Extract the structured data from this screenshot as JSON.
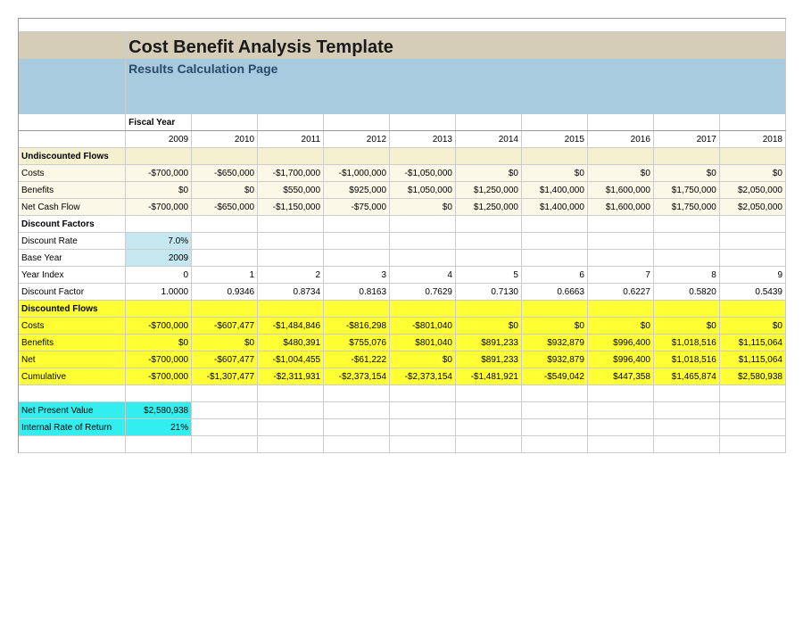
{
  "title": "Cost Benefit Analysis Template",
  "subtitle": "Results Calculation Page",
  "fiscal_label": "Fiscal Year",
  "years": [
    "2009",
    "2010",
    "2011",
    "2012",
    "2013",
    "2014",
    "2015",
    "2016",
    "2017",
    "2018"
  ],
  "sections": {
    "undiscounted": {
      "header": "Undiscounted Flows",
      "rows": [
        {
          "label": "Costs",
          "values": [
            "-$700,000",
            "-$650,000",
            "-$1,700,000",
            "-$1,000,000",
            "-$1,050,000",
            "$0",
            "$0",
            "$0",
            "$0",
            "$0"
          ]
        },
        {
          "label": "Benefits",
          "values": [
            "$0",
            "$0",
            "$550,000",
            "$925,000",
            "$1,050,000",
            "$1,250,000",
            "$1,400,000",
            "$1,600,000",
            "$1,750,000",
            "$2,050,000"
          ]
        },
        {
          "label": "Net Cash Flow",
          "values": [
            "-$700,000",
            "-$650,000",
            "-$1,150,000",
            "-$75,000",
            "$0",
            "$1,250,000",
            "$1,400,000",
            "$1,600,000",
            "$1,750,000",
            "$2,050,000"
          ]
        }
      ]
    },
    "discount_factors": {
      "header": "Discount Factors",
      "rows": [
        {
          "label": "Discount Rate",
          "values": [
            "7.0%",
            "",
            "",
            "",
            "",
            "",
            "",
            "",
            "",
            ""
          ],
          "first_highlight": true
        },
        {
          "label": "Base Year",
          "values": [
            "2009",
            "",
            "",
            "",
            "",
            "",
            "",
            "",
            "",
            ""
          ],
          "first_highlight": true
        },
        {
          "label": "Year Index",
          "values": [
            "0",
            "1",
            "2",
            "3",
            "4",
            "5",
            "6",
            "7",
            "8",
            "9"
          ]
        },
        {
          "label": "Discount Factor",
          "values": [
            "1.0000",
            "0.9346",
            "0.8734",
            "0.8163",
            "0.7629",
            "0.7130",
            "0.6663",
            "0.6227",
            "0.5820",
            "0.5439"
          ]
        }
      ]
    },
    "discounted": {
      "header": "Discounted Flows",
      "rows": [
        {
          "label": "Costs",
          "values": [
            "-$700,000",
            "-$607,477",
            "-$1,484,846",
            "-$816,298",
            "-$801,040",
            "$0",
            "$0",
            "$0",
            "$0",
            "$0"
          ]
        },
        {
          "label": "Benefits",
          "values": [
            "$0",
            "$0",
            "$480,391",
            "$755,076",
            "$801,040",
            "$891,233",
            "$932,879",
            "$996,400",
            "$1,018,516",
            "$1,115,064"
          ]
        },
        {
          "label": "Net",
          "values": [
            "-$700,000",
            "-$607,477",
            "-$1,004,455",
            "-$61,222",
            "$0",
            "$891,233",
            "$932,879",
            "$996,400",
            "$1,018,516",
            "$1,115,064"
          ]
        },
        {
          "label": "Cumulative",
          "values": [
            "-$700,000",
            "-$1,307,477",
            "-$2,311,931",
            "-$2,373,154",
            "-$2,373,154",
            "-$1,481,921",
            "-$549,042",
            "$447,358",
            "$1,465,874",
            "$2,580,938"
          ]
        }
      ]
    },
    "summary": [
      {
        "label": "Net Present Value",
        "value": "$2,580,938"
      },
      {
        "label": "Internal Rate of Return",
        "value": "21%"
      }
    ]
  },
  "colors": {
    "beige": "#d6cdb8",
    "header_blue": "#a9cbe0",
    "pale_yellow": "#fbf8e8",
    "section_yellow": "#f5f0d0",
    "bright_yellow": "#ffff33",
    "light_blue": "#c5e8f0",
    "cyan": "#33eeee"
  }
}
